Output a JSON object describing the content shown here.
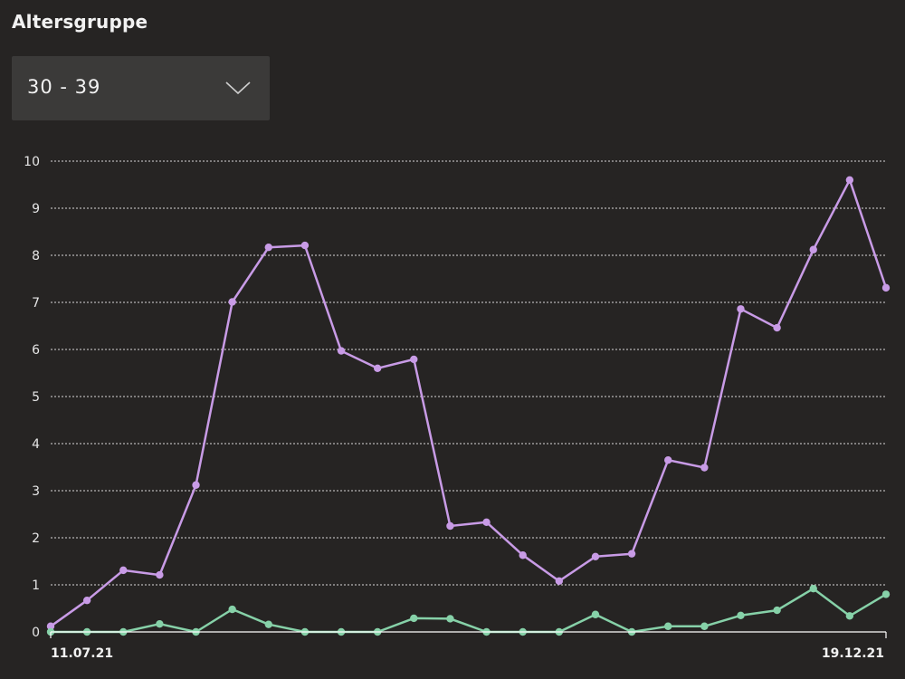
{
  "header": {
    "title": "Altersgruppe"
  },
  "age_select": {
    "value": "30 - 39"
  },
  "colors": {
    "series_1": "#c89be6",
    "series_2": "#86d1a8",
    "grid": "#d9d9d9",
    "background": "#262423"
  },
  "chart_data": {
    "type": "line",
    "x_tick_labels": [
      "11.07.21",
      "19.12.21"
    ],
    "ylim": [
      0,
      10
    ],
    "y_ticks": [
      0,
      1,
      2,
      3,
      4,
      5,
      6,
      7,
      8,
      9,
      10
    ],
    "grid": true,
    "series": [
      {
        "color": "#c89be6",
        "values": [
          0.12,
          0.67,
          1.31,
          1.21,
          3.12,
          7.01,
          8.17,
          8.21,
          5.97,
          5.6,
          5.79,
          2.25,
          2.33,
          1.63,
          1.08,
          1.6,
          1.66,
          3.65,
          3.49,
          6.86,
          6.46,
          8.12,
          9.6,
          7.31
        ]
      },
      {
        "color": "#86d1a8",
        "values": [
          0,
          0,
          0,
          0.17,
          0,
          0.48,
          0.16,
          0,
          0,
          0,
          0.29,
          0.28,
          0,
          0,
          0,
          0.37,
          0,
          0.12,
          0.12,
          0.35,
          0.46,
          0.92,
          0.34,
          0.8
        ]
      }
    ]
  }
}
